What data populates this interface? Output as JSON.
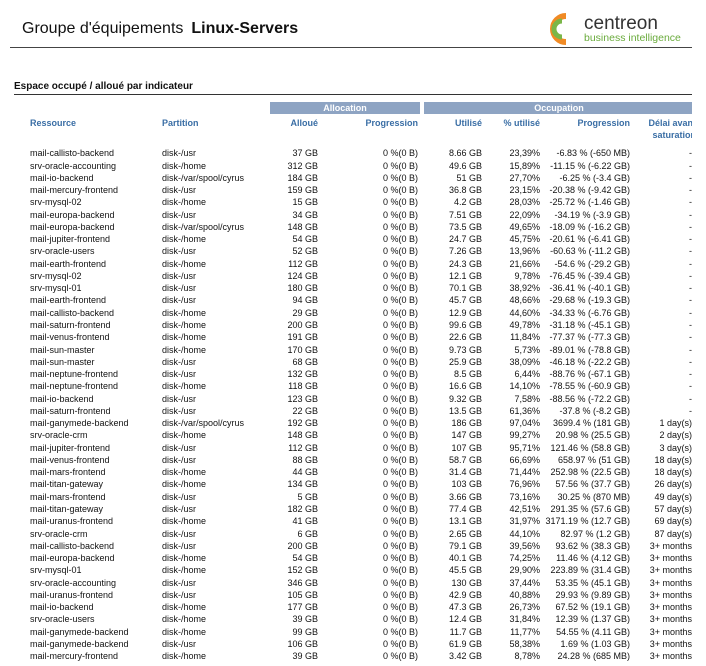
{
  "header": {
    "title": "Groupe d'équipements",
    "group": "Linux-Servers"
  },
  "logo": {
    "name": "centreon",
    "tagline": "business intelligence"
  },
  "section": {
    "title": "Espace occupé / alloué par indicateur"
  },
  "table": {
    "groups": [
      "Allocation",
      "Occupation"
    ],
    "columns": [
      "Ressource",
      "Partition",
      "Alloué",
      "Progression",
      "Utilisé",
      "% utilisé",
      "Progression",
      "Délai avant saturation"
    ],
    "rows": [
      [
        "mail-callisto-backend",
        "disk-/usr",
        "37 GB",
        "0 %(0 B)",
        "8.66 GB",
        "23,39%",
        "-6.83 % (-650 MB)",
        "-"
      ],
      [
        "srv-oracle-accounting",
        "disk-/home",
        "312 GB",
        "0 %(0 B)",
        "49.6 GB",
        "15,89%",
        "-11.15 % (-6.22 GB)",
        "-"
      ],
      [
        "mail-io-backend",
        "disk-/var/spool/cyrus",
        "184 GB",
        "0 %(0 B)",
        "51 GB",
        "27,70%",
        "-6.25 % (-3.4 GB)",
        "-"
      ],
      [
        "mail-mercury-frontend",
        "disk-/usr",
        "159 GB",
        "0 %(0 B)",
        "36.8 GB",
        "23,15%",
        "-20.38 % (-9.42 GB)",
        "-"
      ],
      [
        "srv-mysql-02",
        "disk-/home",
        "15 GB",
        "0 %(0 B)",
        "4.2 GB",
        "28,03%",
        "-25.72 % (-1.46 GB)",
        "-"
      ],
      [
        "mail-europa-backend",
        "disk-/usr",
        "34 GB",
        "0 %(0 B)",
        "7.51 GB",
        "22,09%",
        "-34.19 % (-3.9 GB)",
        "-"
      ],
      [
        "mail-europa-backend",
        "disk-/var/spool/cyrus",
        "148 GB",
        "0 %(0 B)",
        "73.5 GB",
        "49,65%",
        "-18.09 % (-16.2 GB)",
        "-"
      ],
      [
        "mail-jupiter-frontend",
        "disk-/home",
        "54 GB",
        "0 %(0 B)",
        "24.7 GB",
        "45,75%",
        "-20.61 % (-6.41 GB)",
        "-"
      ],
      [
        "srv-oracle-users",
        "disk-/usr",
        "52 GB",
        "0 %(0 B)",
        "7.26 GB",
        "13,96%",
        "-60.63 % (-11.2 GB)",
        "-"
      ],
      [
        "mail-earth-frontend",
        "disk-/home",
        "112 GB",
        "0 %(0 B)",
        "24.3 GB",
        "21,66%",
        "-54.6 % (-29.2 GB)",
        "-"
      ],
      [
        "srv-mysql-02",
        "disk-/usr",
        "124 GB",
        "0 %(0 B)",
        "12.1 GB",
        "9,78%",
        "-76.45 % (-39.4 GB)",
        "-"
      ],
      [
        "srv-mysql-01",
        "disk-/usr",
        "180 GB",
        "0 %(0 B)",
        "70.1 GB",
        "38,92%",
        "-36.41 % (-40.1 GB)",
        "-"
      ],
      [
        "mail-earth-frontend",
        "disk-/usr",
        "94 GB",
        "0 %(0 B)",
        "45.7 GB",
        "48,66%",
        "-29.68 % (-19.3 GB)",
        "-"
      ],
      [
        "mail-callisto-backend",
        "disk-/home",
        "29 GB",
        "0 %(0 B)",
        "12.9 GB",
        "44,60%",
        "-34.33 % (-6.76 GB)",
        "-"
      ],
      [
        "mail-saturn-frontend",
        "disk-/home",
        "200 GB",
        "0 %(0 B)",
        "99.6 GB",
        "49,78%",
        "-31.18 % (-45.1 GB)",
        "-"
      ],
      [
        "mail-venus-frontend",
        "disk-/home",
        "191 GB",
        "0 %(0 B)",
        "22.6 GB",
        "11,84%",
        "-77.37 % (-77.3 GB)",
        "-"
      ],
      [
        "mail-sun-master",
        "disk-/home",
        "170 GB",
        "0 %(0 B)",
        "9.73 GB",
        "5,73%",
        "-89.01 % (-78.8 GB)",
        "-"
      ],
      [
        "mail-sun-master",
        "disk-/usr",
        "68 GB",
        "0 %(0 B)",
        "25.9 GB",
        "38,09%",
        "-46.18 % (-22.2 GB)",
        "-"
      ],
      [
        "mail-neptune-frontend",
        "disk-/usr",
        "132 GB",
        "0 %(0 B)",
        "8.5 GB",
        "6,44%",
        "-88.76 % (-67.1 GB)",
        "-"
      ],
      [
        "mail-neptune-frontend",
        "disk-/home",
        "118 GB",
        "0 %(0 B)",
        "16.6 GB",
        "14,10%",
        "-78.55 % (-60.9 GB)",
        "-"
      ],
      [
        "mail-io-backend",
        "disk-/usr",
        "123 GB",
        "0 %(0 B)",
        "9.32 GB",
        "7,58%",
        "-88.56 % (-72.2 GB)",
        "-"
      ],
      [
        "mail-saturn-frontend",
        "disk-/usr",
        "22 GB",
        "0 %(0 B)",
        "13.5 GB",
        "61,36%",
        "-37.8 % (-8.2 GB)",
        "-"
      ],
      [
        "mail-ganymede-backend",
        "disk-/var/spool/cyrus",
        "192 GB",
        "0 %(0 B)",
        "186 GB",
        "97,04%",
        "3699.4 % (181 GB)",
        "1 day(s)"
      ],
      [
        "srv-oracle-crm",
        "disk-/home",
        "148 GB",
        "0 %(0 B)",
        "147 GB",
        "99,27%",
        "20.98 % (25.5 GB)",
        "2 day(s)"
      ],
      [
        "mail-jupiter-frontend",
        "disk-/usr",
        "112 GB",
        "0 %(0 B)",
        "107 GB",
        "95,71%",
        "121.46 % (58.8 GB)",
        "3 day(s)"
      ],
      [
        "mail-venus-frontend",
        "disk-/usr",
        "88 GB",
        "0 %(0 B)",
        "58.7 GB",
        "66,69%",
        "658.97 % (51 GB)",
        "18 day(s)"
      ],
      [
        "mail-mars-frontend",
        "disk-/home",
        "44 GB",
        "0 %(0 B)",
        "31.4 GB",
        "71,44%",
        "252.98 % (22.5 GB)",
        "18 day(s)"
      ],
      [
        "mail-titan-gateway",
        "disk-/home",
        "134 GB",
        "0 %(0 B)",
        "103 GB",
        "76,96%",
        "57.56 % (37.7 GB)",
        "26 day(s)"
      ],
      [
        "mail-mars-frontend",
        "disk-/usr",
        "5 GB",
        "0 %(0 B)",
        "3.66 GB",
        "73,16%",
        "30.25 % (870 MB)",
        "49 day(s)"
      ],
      [
        "mail-titan-gateway",
        "disk-/usr",
        "182 GB",
        "0 %(0 B)",
        "77.4 GB",
        "42,51%",
        "291.35 % (57.6 GB)",
        "57 day(s)"
      ],
      [
        "mail-uranus-frontend",
        "disk-/home",
        "41 GB",
        "0 %(0 B)",
        "13.1 GB",
        "31,97%",
        "3171.19 % (12.7 GB)",
        "69 day(s)"
      ],
      [
        "srv-oracle-crm",
        "disk-/usr",
        "6 GB",
        "0 %(0 B)",
        "2.65 GB",
        "44,10%",
        "82.97 % (1.2 GB)",
        "87 day(s)"
      ],
      [
        "mail-callisto-backend",
        "disk-/usr",
        "200 GB",
        "0 %(0 B)",
        "79.1 GB",
        "39,56%",
        "93.62 % (38.3 GB)",
        "3+ months"
      ],
      [
        "mail-europa-backend",
        "disk-/home",
        "54 GB",
        "0 %(0 B)",
        "40.1 GB",
        "74,25%",
        "11.46 % (4.12 GB)",
        "3+ months"
      ],
      [
        "srv-mysql-01",
        "disk-/home",
        "152 GB",
        "0 %(0 B)",
        "45.5 GB",
        "29,90%",
        "223.89 % (31.4 GB)",
        "3+ months"
      ],
      [
        "srv-oracle-accounting",
        "disk-/usr",
        "346 GB",
        "0 %(0 B)",
        "130 GB",
        "37,44%",
        "53.35 % (45.1 GB)",
        "3+ months"
      ],
      [
        "mail-uranus-frontend",
        "disk-/usr",
        "105 GB",
        "0 %(0 B)",
        "42.9 GB",
        "40,88%",
        "29.93 % (9.89 GB)",
        "3+ months"
      ],
      [
        "mail-io-backend",
        "disk-/home",
        "177 GB",
        "0 %(0 B)",
        "47.3 GB",
        "26,73%",
        "67.52 % (19.1 GB)",
        "3+ months"
      ],
      [
        "srv-oracle-users",
        "disk-/home",
        "39 GB",
        "0 %(0 B)",
        "12.4 GB",
        "31,84%",
        "12.39 % (1.37 GB)",
        "3+ months"
      ],
      [
        "mail-ganymede-backend",
        "disk-/home",
        "99 GB",
        "0 %(0 B)",
        "11.7 GB",
        "11,77%",
        "54.55 % (4.11 GB)",
        "3+ months"
      ],
      [
        "mail-ganymede-backend",
        "disk-/usr",
        "106 GB",
        "0 %(0 B)",
        "61.9 GB",
        "58,38%",
        "1.69 % (1.03 GB)",
        "3+ months"
      ],
      [
        "mail-mercury-frontend",
        "disk-/home",
        "39 GB",
        "0 %(0 B)",
        "3.42 GB",
        "8,78%",
        "24.28 % (685 MB)",
        "3+ months"
      ]
    ]
  }
}
